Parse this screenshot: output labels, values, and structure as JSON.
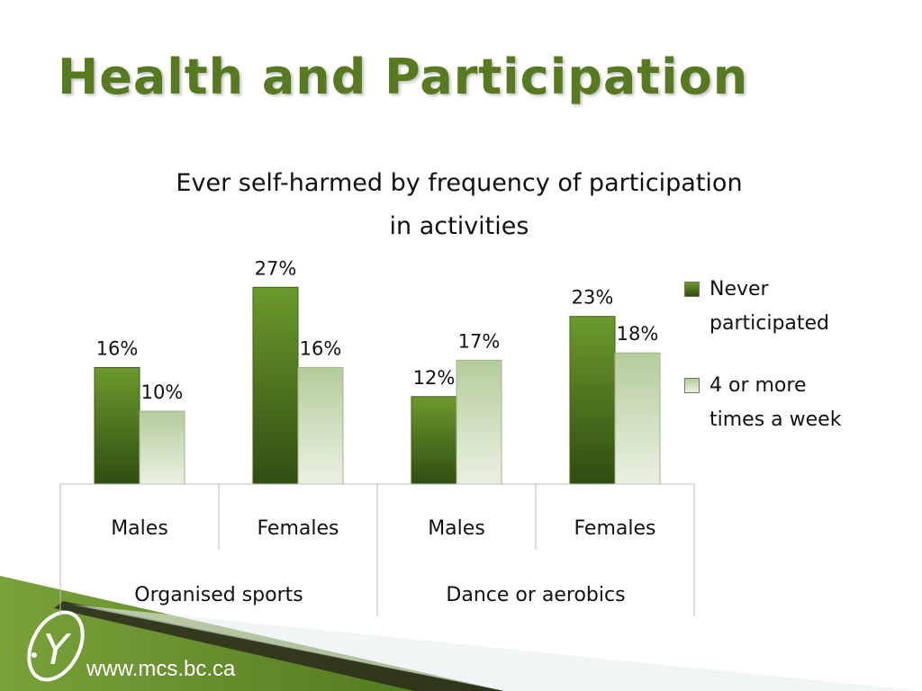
{
  "slide": {
    "title": "Health and Participation",
    "footer_url": "www.mcs.bc.ca",
    "logo_letter": "Y"
  },
  "colors": {
    "title": "#57791f",
    "series_dark_top": "#6c9a2c",
    "series_dark_bottom": "#2f4d12",
    "series_light_top": "#b4cc9c",
    "series_light_bottom": "#eaf1e2",
    "footer_band": "#5f8a26"
  },
  "chart_data": {
    "type": "bar",
    "title_lines": [
      "Ever self-harmed by frequency of participation",
      "in activities"
    ],
    "groups": [
      {
        "label": "Organised sports",
        "categories": [
          "Males",
          "Females"
        ]
      },
      {
        "label": "Dance or aerobics",
        "categories": [
          "Males",
          "Females"
        ]
      }
    ],
    "categories": [
      "Males",
      "Females",
      "Males",
      "Females"
    ],
    "series": [
      {
        "name": "Never participated",
        "values": [
          16,
          27,
          12,
          23
        ],
        "labels": [
          "16%",
          "27%",
          "12%",
          "23%"
        ]
      },
      {
        "name": "4 or more times a week",
        "values": [
          10,
          16,
          17,
          18
        ],
        "labels": [
          "10%",
          "16%",
          "17%",
          "18%"
        ]
      }
    ],
    "legend_lines": [
      [
        "Never",
        "participated"
      ],
      [
        "4 or more",
        "times a week"
      ]
    ],
    "legend_position": "right",
    "value_unit": "%",
    "grid": false
  }
}
